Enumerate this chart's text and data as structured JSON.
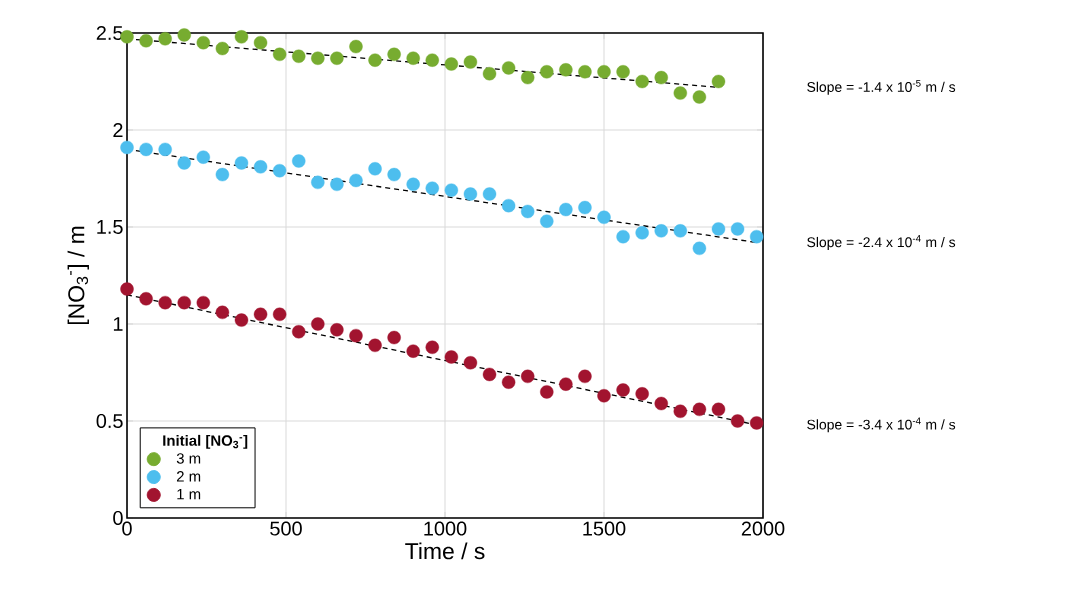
{
  "chart_data": {
    "type": "scatter",
    "xlabel": "Time / s",
    "ylabel": "[NO$_{3}$$^{-}$] / m",
    "legend_title": "Initial [NO$_{3}$$^{-}$]",
    "x": [
      0,
      60,
      120,
      180,
      240,
      300,
      360,
      420,
      480,
      540,
      600,
      660,
      720,
      780,
      840,
      900,
      960,
      1020,
      1080,
      1140,
      1200,
      1260,
      1320,
      1380,
      1440,
      1500,
      1560,
      1620,
      1680,
      1740,
      1800,
      1860,
      1920,
      1980
    ],
    "series": [
      {
        "name": "3 m",
        "color": "#77ac30",
        "x": [
          0,
          60,
          120,
          180,
          240,
          300,
          360,
          420,
          480,
          540,
          600,
          660,
          720,
          780,
          840,
          900,
          960,
          1020,
          1080,
          1140,
          1200,
          1260,
          1320,
          1380,
          1440,
          1500,
          1560,
          1620,
          1680,
          1740,
          1800,
          1860
        ],
        "values": [
          2.48,
          2.46,
          2.47,
          2.49,
          2.45,
          2.42,
          2.48,
          2.45,
          2.39,
          2.38,
          2.37,
          2.37,
          2.43,
          2.36,
          2.39,
          2.37,
          2.36,
          2.34,
          2.35,
          2.29,
          2.32,
          2.27,
          2.3,
          2.31,
          2.3,
          2.3,
          2.3,
          2.25,
          2.27,
          2.19,
          2.17,
          2.25
        ]
      },
      {
        "name": "2 m",
        "color": "#4dbeee",
        "values": [
          1.91,
          1.9,
          1.9,
          1.83,
          1.86,
          1.77,
          1.83,
          1.81,
          1.79,
          1.84,
          1.73,
          1.72,
          1.74,
          1.8,
          1.77,
          1.72,
          1.7,
          1.69,
          1.67,
          1.67,
          1.61,
          1.58,
          1.53,
          1.59,
          1.6,
          1.55,
          1.45,
          1.47,
          1.48,
          1.48,
          1.39,
          1.49,
          1.49,
          1.45
        ]
      },
      {
        "name": "1 m",
        "color": "#a2142f",
        "values": [
          1.18,
          1.13,
          1.11,
          1.11,
          1.11,
          1.06,
          1.02,
          1.05,
          1.05,
          0.96,
          1.0,
          0.97,
          0.94,
          0.89,
          0.93,
          0.86,
          0.88,
          0.83,
          0.8,
          0.74,
          0.7,
          0.73,
          0.65,
          0.69,
          0.73,
          0.63,
          0.66,
          0.64,
          0.59,
          0.55,
          0.56,
          0.56,
          0.5,
          0.49
        ]
      },
      {
        "type": "line",
        "color": "#000000",
        "line_style": "dashed",
        "marker": "none",
        "x": [
          0,
          1860
        ],
        "values": [
          2.47,
          2.22
        ]
      },
      {
        "type": "line",
        "color": "#000000",
        "line_style": "dashed",
        "marker": "none",
        "x": [
          0,
          1980
        ],
        "values": [
          1.9,
          1.42
        ]
      },
      {
        "type": "line",
        "color": "#000000",
        "line_style": "dashed",
        "marker": "none",
        "x": [
          0,
          1980
        ],
        "values": [
          1.15,
          0.48
        ]
      }
    ],
    "xlim": [
      0,
      2000
    ],
    "ylim": [
      0,
      2.5
    ],
    "xticks": [
      0,
      500,
      1000,
      1500,
      2000
    ],
    "yticks": [
      0,
      0.5,
      1,
      1.5,
      2,
      2.5
    ],
    "grid": true,
    "legend": "bottom left",
    "marker": "circle",
    "annotations": [
      "Slope = -1.4 x 10$^{-5}$ m / s",
      "Slope = -2.4 x 10$^{-4}$ m / s",
      "Slope = -3.4 x 10$^{-4}$ m / s"
    ]
  }
}
